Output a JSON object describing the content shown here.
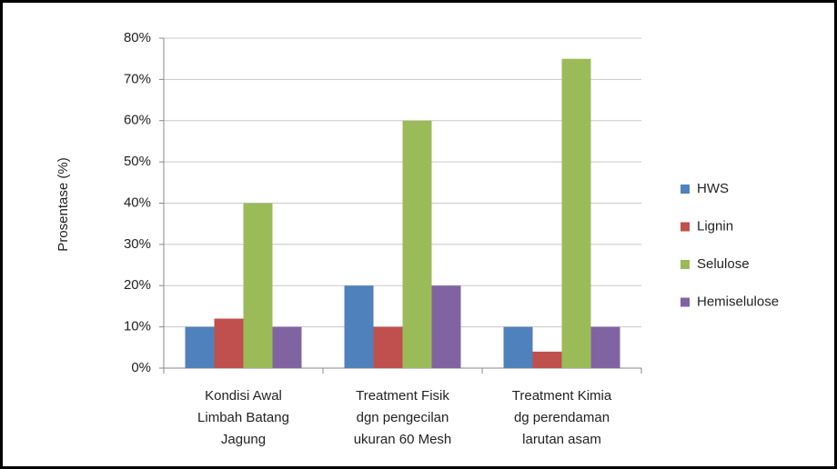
{
  "chart_data": {
    "type": "bar",
    "categories": [
      [
        "Kondisi Awal",
        "Limbah Batang",
        "Jagung"
      ],
      [
        "Treatment Fisik",
        "dgn pengecilan",
        "ukuran 60 Mesh"
      ],
      [
        "Treatment Kimia",
        "dg perendaman",
        "larutan asam"
      ]
    ],
    "series": [
      {
        "name": "HWS",
        "color": "#4f81bd",
        "values": [
          10,
          20,
          10
        ]
      },
      {
        "name": "Lignin",
        "color": "#c0504d",
        "values": [
          12,
          10,
          4
        ]
      },
      {
        "name": "Selulose",
        "color": "#9bbb59",
        "values": [
          40,
          60,
          75
        ]
      },
      {
        "name": "Hemiselulose",
        "color": "#8064a2",
        "values": [
          10,
          20,
          10
        ]
      }
    ],
    "y_label": "Prosentase (%)",
    "ylim": [
      0,
      80
    ],
    "yticks": [
      {
        "value": 0,
        "label": "0%"
      },
      {
        "value": 10,
        "label": "10%"
      },
      {
        "value": 20,
        "label": "20%"
      },
      {
        "value": 30,
        "label": "30%"
      },
      {
        "value": 40,
        "label": "40%"
      },
      {
        "value": 50,
        "label": "50%"
      },
      {
        "value": 60,
        "label": "60%"
      },
      {
        "value": 70,
        "label": "70%"
      },
      {
        "value": 80,
        "label": "80%"
      }
    ],
    "grid": true,
    "legend": "right"
  }
}
